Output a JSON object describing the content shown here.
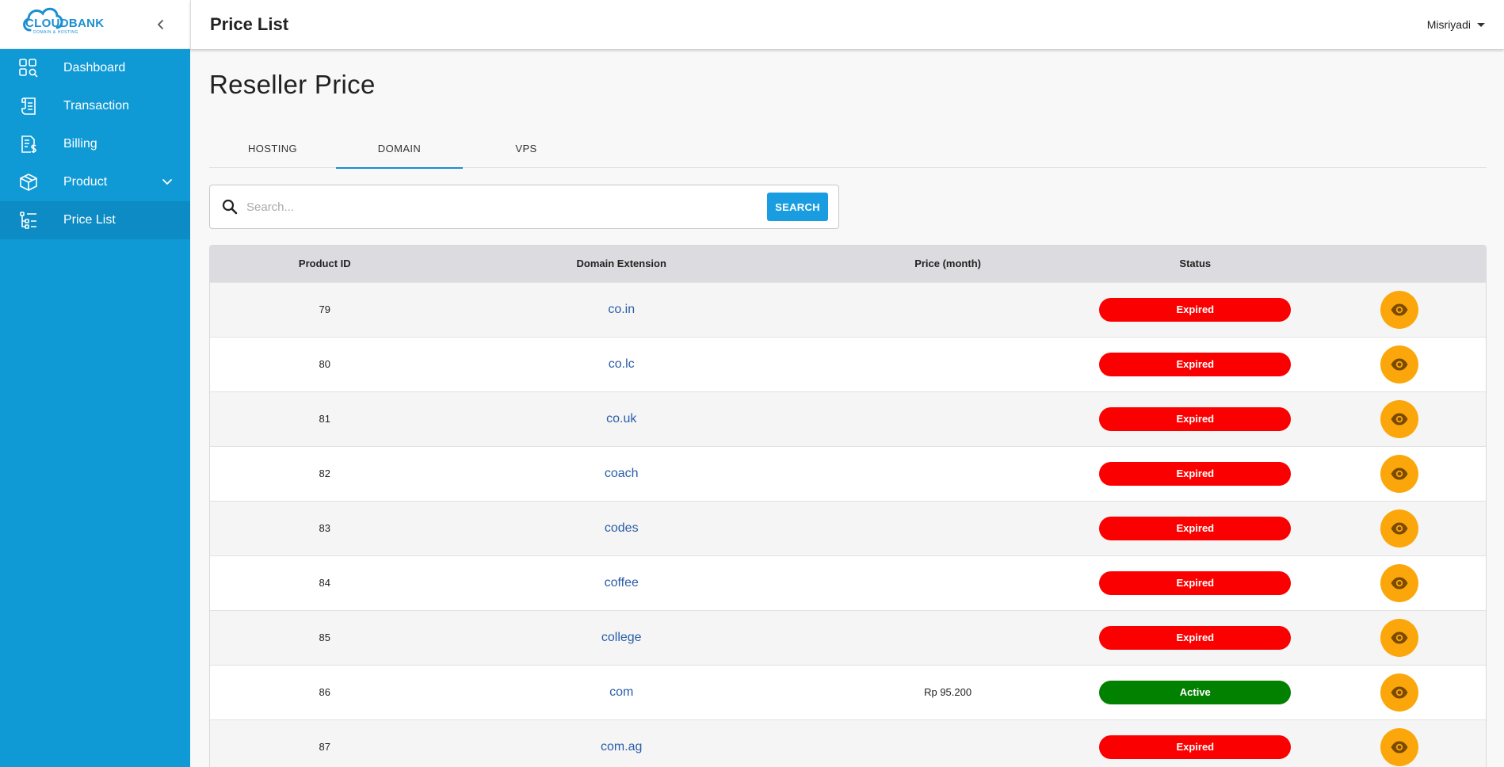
{
  "brand": {
    "name": "CLOUDBANK",
    "tagline": "DOMAIN & HOSTING"
  },
  "sidebar": {
    "items": [
      {
        "label": "Dashboard",
        "icon": "dashboard-icon"
      },
      {
        "label": "Transaction",
        "icon": "receipt-icon"
      },
      {
        "label": "Billing",
        "icon": "invoice-icon"
      },
      {
        "label": "Product",
        "icon": "box-icon",
        "expandable": true
      },
      {
        "label": "Price List",
        "icon": "list-icon",
        "active": true
      }
    ]
  },
  "header": {
    "title": "Price List",
    "user": "Misriyadi"
  },
  "main": {
    "heading": "Reseller Price",
    "tabs": [
      {
        "label": "HOSTING"
      },
      {
        "label": "DOMAIN",
        "active": true
      },
      {
        "label": "VPS"
      }
    ],
    "search": {
      "placeholder": "Search...",
      "value": "",
      "button_label": "SEARCH"
    },
    "table": {
      "columns": [
        "Product ID",
        "Domain Extension",
        "Price (month)",
        "Status",
        ""
      ],
      "rows": [
        {
          "id": "79",
          "ext": "co.in",
          "price": "",
          "status": "Expired"
        },
        {
          "id": "80",
          "ext": "co.lc",
          "price": "",
          "status": "Expired"
        },
        {
          "id": "81",
          "ext": "co.uk",
          "price": "",
          "status": "Expired"
        },
        {
          "id": "82",
          "ext": "coach",
          "price": "",
          "status": "Expired"
        },
        {
          "id": "83",
          "ext": "codes",
          "price": "",
          "status": "Expired"
        },
        {
          "id": "84",
          "ext": "coffee",
          "price": "",
          "status": "Expired"
        },
        {
          "id": "85",
          "ext": "college",
          "price": "",
          "status": "Expired"
        },
        {
          "id": "86",
          "ext": "com",
          "price": "Rp 95.200",
          "status": "Active"
        },
        {
          "id": "87",
          "ext": "com.ag",
          "price": "",
          "status": "Expired"
        }
      ]
    }
  },
  "colors": {
    "sidebar": "#0f9ad6",
    "accent": "#1b8fd2",
    "expired": "#fa0000",
    "active": "#028000",
    "view_button": "#fba70b"
  }
}
